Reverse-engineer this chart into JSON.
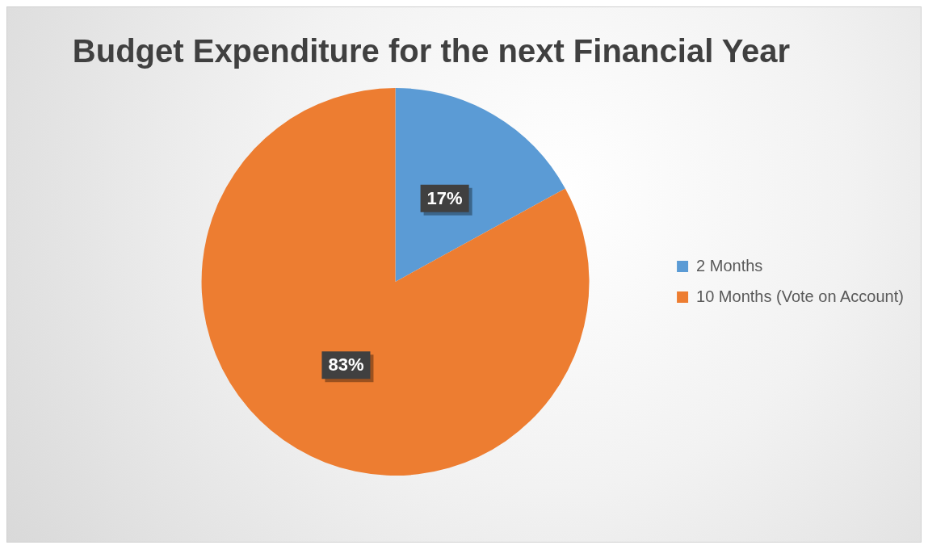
{
  "chart_data": {
    "type": "pie",
    "title": "Budget Expenditure for the next Financial Year",
    "categories": [
      "2 Months",
      "10 Months (Vote on Account)"
    ],
    "values": [
      17,
      83
    ],
    "colors": [
      "#5b9bd5",
      "#ed7d31"
    ],
    "value_labels": [
      "17%",
      "83%"
    ],
    "legend": "right"
  }
}
